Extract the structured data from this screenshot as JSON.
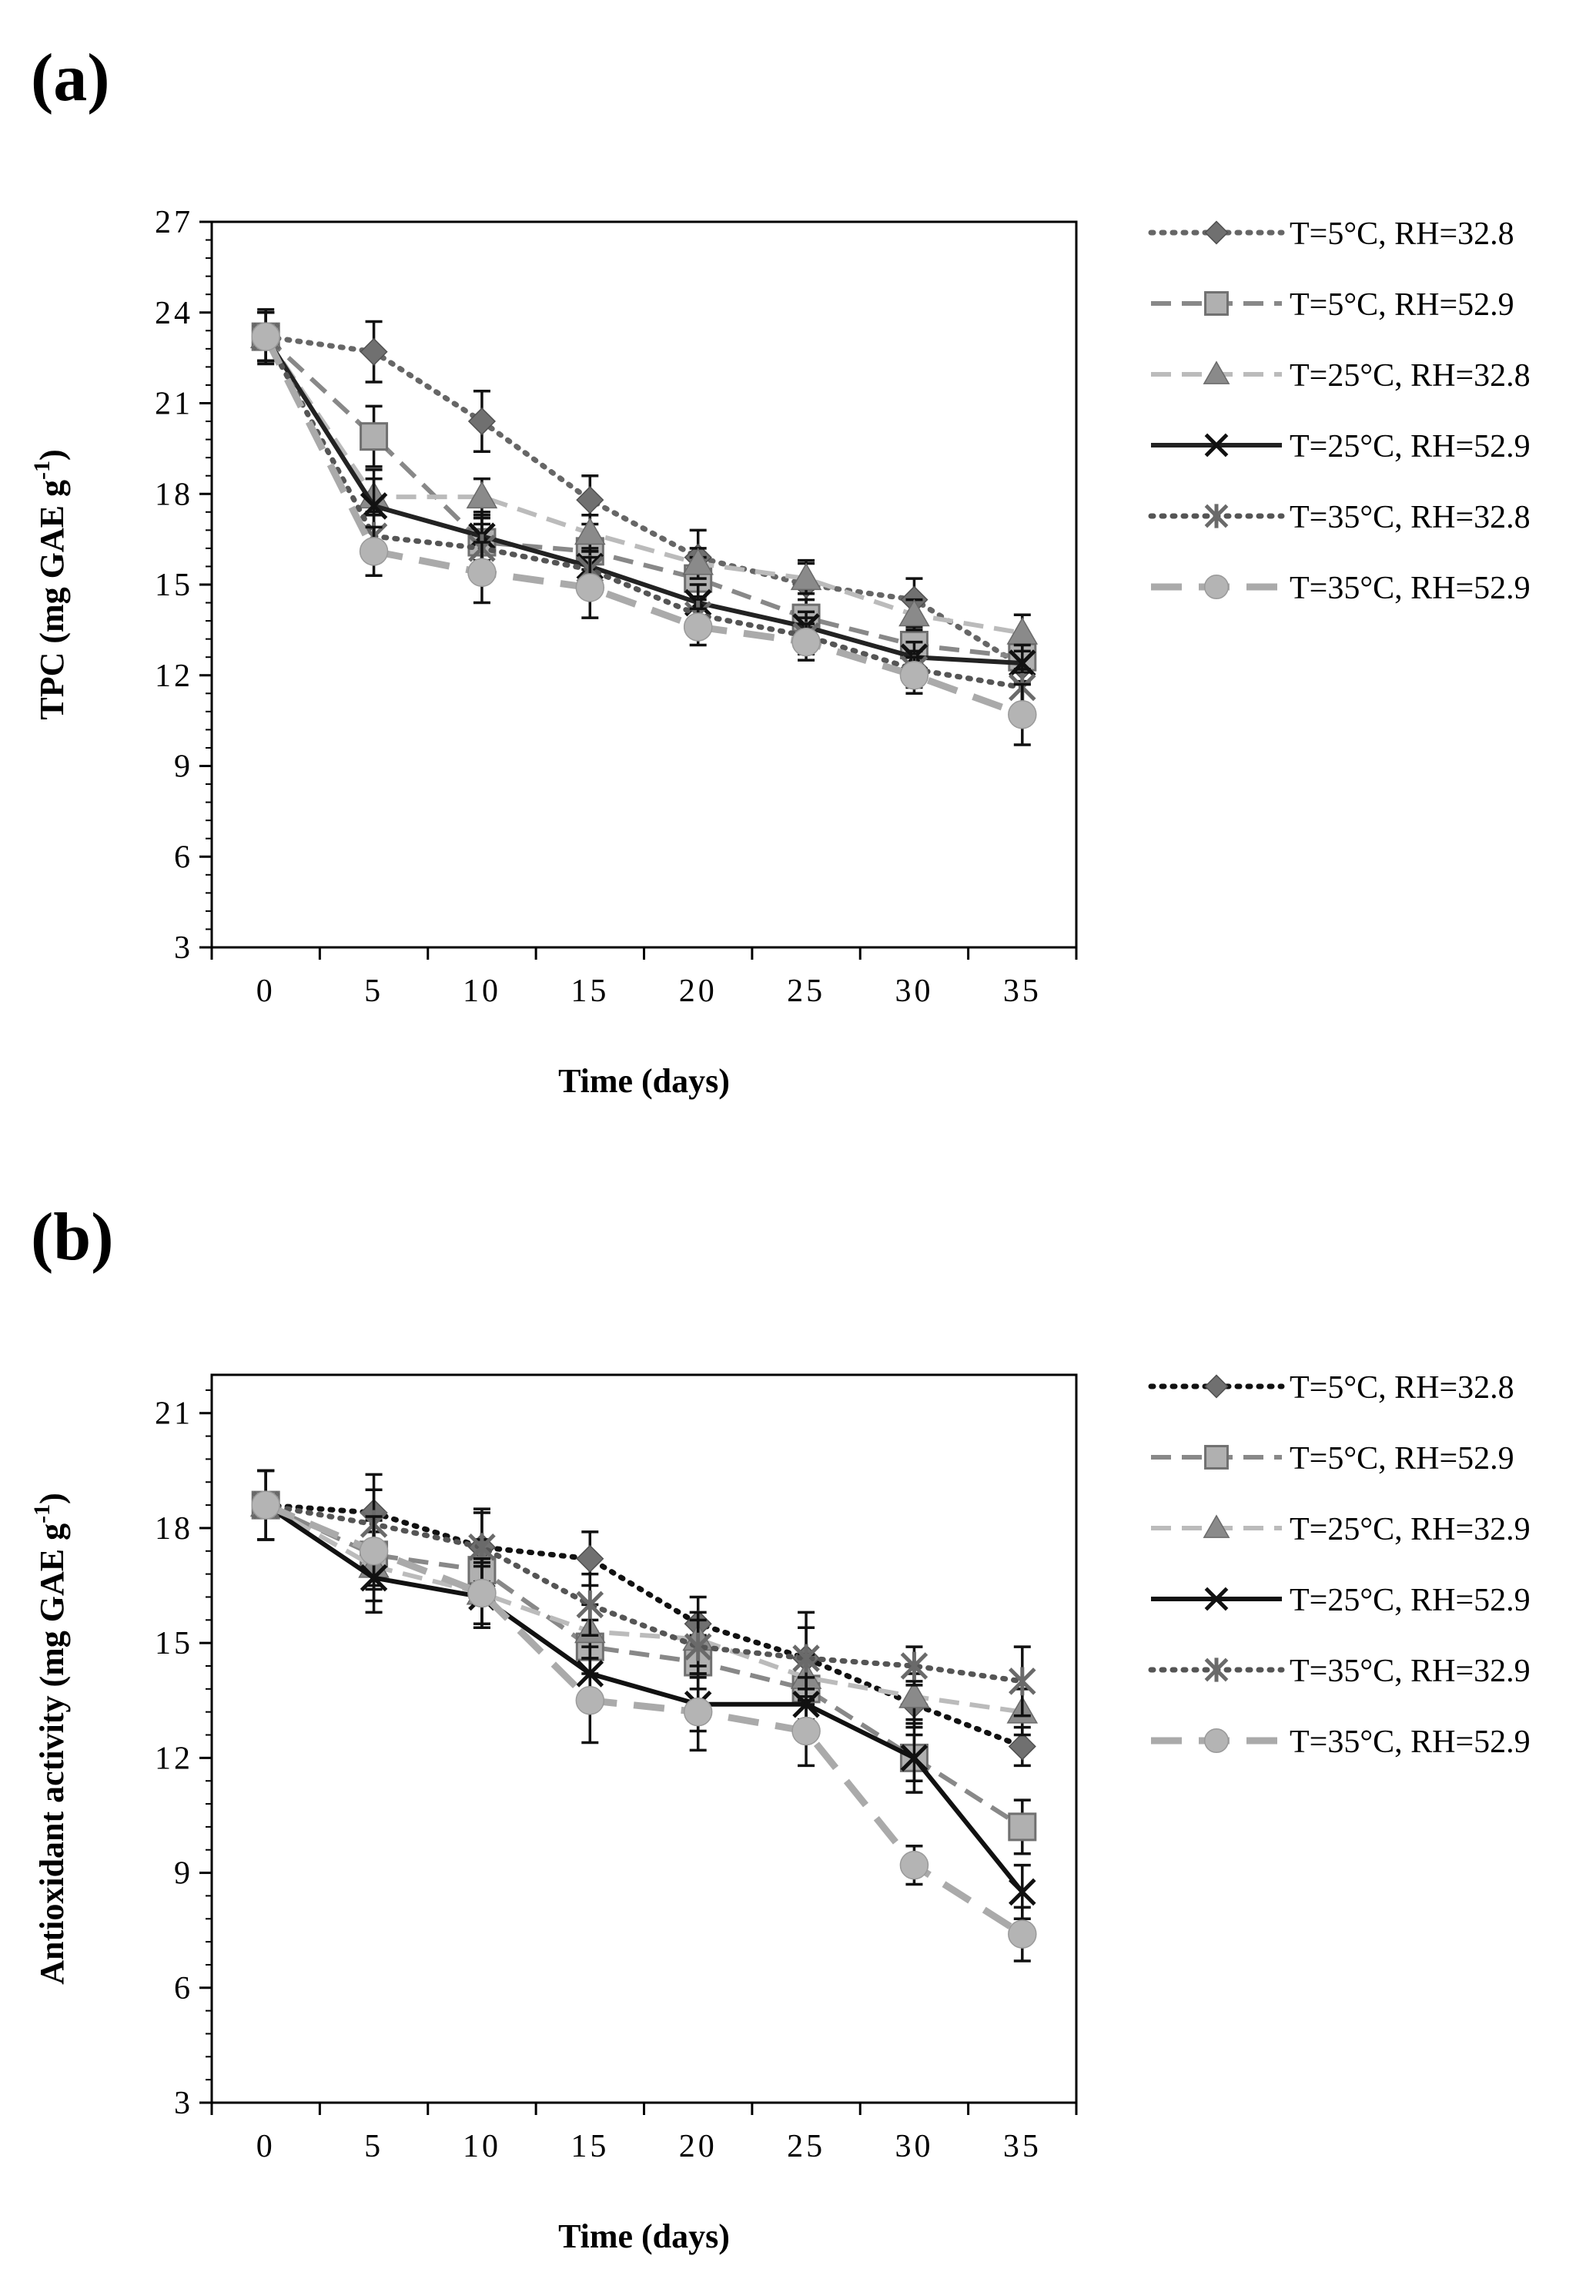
{
  "chart_data": [
    {
      "type": "line",
      "panel_label": "(a)",
      "xlabel": "Time (days)",
      "ylabel": "TPC (mg GAE g",
      "ylabel_sup": "-1",
      "ylabel_end": ")",
      "x": [
        0,
        5,
        10,
        15,
        20,
        25,
        30,
        35
      ],
      "x_ticks": [
        "0",
        "5",
        "10",
        "15",
        "20",
        "25",
        "30",
        "35"
      ],
      "ylim": [
        3,
        27
      ],
      "y_ticks": [
        "3",
        "6",
        "9",
        "12",
        "15",
        "18",
        "21",
        "24",
        "27"
      ],
      "grid": false,
      "legend_position": "right",
      "series": [
        {
          "name": "T=5°C, RH=32.8",
          "color": "#666666",
          "dash": "dotted",
          "marker": "diamond",
          "values": [
            23.2,
            22.7,
            20.4,
            17.8,
            15.9,
            15.0,
            14.5,
            12.3
          ],
          "errors": [
            0.8,
            1.0,
            1.0,
            0.8,
            0.9,
            0.8,
            0.7,
            0.6
          ]
        },
        {
          "name": "T=5°C, RH=52.9",
          "color": "#888888",
          "dash": "dashed",
          "marker": "square",
          "values": [
            23.2,
            19.9,
            16.4,
            16.1,
            15.2,
            13.9,
            13.0,
            12.6
          ],
          "errors": [
            0.8,
            1.0,
            0.8,
            0.6,
            0.7,
            0.6,
            0.6,
            0.5
          ]
        },
        {
          "name": "T=25°C, RH=32.8",
          "color": "#bbbbbb",
          "dash": "dashed",
          "marker": "triangle",
          "values": [
            23.2,
            17.9,
            17.9,
            16.7,
            15.7,
            15.2,
            14.0,
            13.4
          ],
          "errors": [
            0.8,
            0.6,
            0.6,
            0.6,
            0.5,
            0.5,
            0.5,
            0.6
          ]
        },
        {
          "name": "T=25°C, RH=52.9",
          "color": "#222222",
          "dash": "solid",
          "marker": "x",
          "values": [
            23.2,
            17.6,
            16.6,
            15.6,
            14.4,
            13.6,
            12.6,
            12.4
          ],
          "errors": [
            0.9,
            1.2,
            0.8,
            0.6,
            0.6,
            0.5,
            0.5,
            0.6
          ]
        },
        {
          "name": "T=35°C, RH=32.8",
          "color": "#555555",
          "dash": "dotted",
          "marker": "star",
          "values": [
            23.2,
            16.6,
            16.2,
            15.5,
            14.0,
            13.3,
            12.2,
            11.6
          ],
          "errors": [
            0.8,
            0.8,
            0.8,
            0.6,
            0.6,
            0.6,
            0.6,
            0.6
          ]
        },
        {
          "name": "T=35°C, RH=52.9",
          "color": "#aaaaaa",
          "dash": "longdash",
          "marker": "circle",
          "values": [
            23.2,
            16.1,
            15.4,
            14.9,
            13.6,
            13.1,
            12.0,
            10.7
          ],
          "errors": [
            0.8,
            0.8,
            1.0,
            1.0,
            0.6,
            0.6,
            0.6,
            1.0
          ]
        }
      ]
    },
    {
      "type": "line",
      "panel_label": "(b)",
      "xlabel": "Time (days)",
      "ylabel": "Antioxidant activity (mg GAE g",
      "ylabel_sup": "-1",
      "ylabel_end": ")",
      "x": [
        0,
        5,
        10,
        15,
        20,
        25,
        30,
        35
      ],
      "x_ticks": [
        "0",
        "5",
        "10",
        "15",
        "20",
        "25",
        "30",
        "35"
      ],
      "ylim": [
        3,
        22
      ],
      "y_ticks": [
        "3",
        "6",
        "9",
        "12",
        "15",
        "18",
        "21"
      ],
      "grid": false,
      "legend_position": "right",
      "series": [
        {
          "name": "T=5°C, RH=32.8",
          "color": "#111111",
          "dash": "dotted",
          "marker": "diamond",
          "values": [
            18.6,
            18.4,
            17.5,
            17.2,
            15.5,
            14.6,
            13.4,
            12.3
          ],
          "errors": [
            0.9,
            1.0,
            1.0,
            0.7,
            0.7,
            1.2,
            0.6,
            0.5
          ]
        },
        {
          "name": "T=5°C, RH=52.9",
          "color": "#888888",
          "dash": "dashed",
          "marker": "square",
          "values": [
            18.6,
            17.3,
            16.9,
            14.9,
            14.5,
            13.8,
            12.0,
            10.2
          ],
          "errors": [
            0.9,
            0.9,
            0.8,
            0.7,
            0.7,
            0.8,
            0.6,
            0.7
          ]
        },
        {
          "name": "T=25°C, RH=32.9",
          "color": "#bbbbbb",
          "dash": "dashed",
          "marker": "triangle",
          "values": [
            18.6,
            17.0,
            16.3,
            15.3,
            15.1,
            14.1,
            13.6,
            13.2
          ],
          "errors": [
            0.9,
            0.9,
            0.8,
            0.7,
            0.7,
            0.6,
            0.6,
            0.6
          ]
        },
        {
          "name": "T=25°C, RH=52.9",
          "color": "#111111",
          "dash": "solid",
          "marker": "x",
          "values": [
            18.6,
            16.7,
            16.2,
            14.2,
            13.4,
            13.4,
            12.0,
            8.5
          ],
          "errors": [
            0.9,
            0.9,
            0.8,
            0.7,
            0.7,
            0.7,
            0.9,
            0.7
          ]
        },
        {
          "name": "T=35°C, RH=32.9",
          "color": "#555555",
          "dash": "dotted",
          "marker": "star",
          "values": [
            18.6,
            18.1,
            17.5,
            16.0,
            14.9,
            14.6,
            14.4,
            14.0
          ],
          "errors": [
            0.9,
            0.9,
            0.9,
            0.8,
            0.7,
            0.8,
            0.5,
            0.9
          ]
        },
        {
          "name": "T=35°C, RH=52.9",
          "color": "#aaaaaa",
          "dash": "longdash",
          "marker": "circle",
          "values": [
            18.6,
            17.4,
            16.3,
            13.5,
            13.2,
            12.7,
            9.2,
            7.4
          ],
          "errors": [
            0.9,
            0.9,
            0.9,
            1.1,
            1.0,
            0.9,
            0.5,
            0.7
          ]
        }
      ]
    }
  ]
}
